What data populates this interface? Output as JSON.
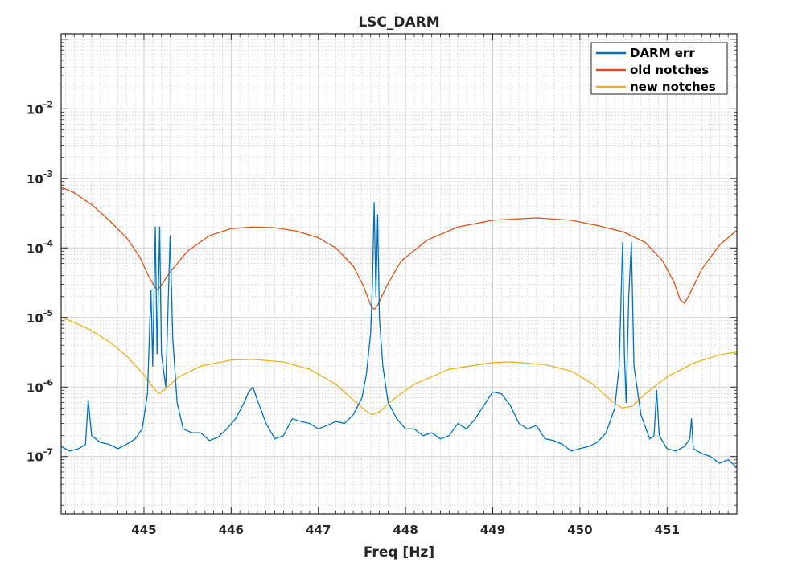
{
  "chart_data": {
    "type": "line",
    "title": "LSC_DARM",
    "xlabel": "Freq [Hz]",
    "ylabel": "",
    "xlim": [
      444.05,
      451.8
    ],
    "ylim": [
      1.5e-08,
      0.12
    ],
    "yscale": "log",
    "grid": true,
    "minor_grid": true,
    "legend_position": "top-right",
    "x_ticks": [
      "445",
      "446",
      "447",
      "448",
      "449",
      "450",
      "451"
    ],
    "y_ticks": [
      {
        "base": "10",
        "exp": "-7"
      },
      {
        "base": "10",
        "exp": "-6"
      },
      {
        "base": "10",
        "exp": "-5"
      },
      {
        "base": "10",
        "exp": "-4"
      },
      {
        "base": "10",
        "exp": "-3"
      },
      {
        "base": "10",
        "exp": "-2"
      }
    ],
    "series": [
      {
        "name": "DARM err",
        "color": "#0072BD",
        "points": [
          [
            444.05,
            1.4e-07
          ],
          [
            444.15,
            1.2e-07
          ],
          [
            444.25,
            1.3e-07
          ],
          [
            444.33,
            1.5e-07
          ],
          [
            444.36,
            6.5e-07
          ],
          [
            444.4,
            2e-07
          ],
          [
            444.5,
            1.6e-07
          ],
          [
            444.6,
            1.5e-07
          ],
          [
            444.7,
            1.3e-07
          ],
          [
            444.8,
            1.5e-07
          ],
          [
            444.9,
            1.8e-07
          ],
          [
            444.98,
            2.5e-07
          ],
          [
            445.04,
            8e-07
          ],
          [
            445.08,
            2.5e-05
          ],
          [
            445.1,
            2e-06
          ],
          [
            445.13,
            0.0002
          ],
          [
            445.15,
            3e-06
          ],
          [
            445.18,
            0.0002
          ],
          [
            445.2,
            3e-06
          ],
          [
            445.25,
            1e-06
          ],
          [
            445.3,
            0.00015
          ],
          [
            445.33,
            5e-06
          ],
          [
            445.38,
            6e-07
          ],
          [
            445.45,
            2.5e-07
          ],
          [
            445.55,
            2.2e-07
          ],
          [
            445.65,
            2.2e-07
          ],
          [
            445.75,
            1.7e-07
          ],
          [
            445.85,
            1.9e-07
          ],
          [
            445.95,
            2.5e-07
          ],
          [
            446.05,
            3.5e-07
          ],
          [
            446.15,
            6e-07
          ],
          [
            446.2,
            8.5e-07
          ],
          [
            446.25,
            1e-06
          ],
          [
            446.3,
            6.5e-07
          ],
          [
            446.4,
            3e-07
          ],
          [
            446.5,
            1.8e-07
          ],
          [
            446.6,
            2e-07
          ],
          [
            446.7,
            3.5e-07
          ],
          [
            446.8,
            3.2e-07
          ],
          [
            446.9,
            3e-07
          ],
          [
            447.0,
            2.5e-07
          ],
          [
            447.1,
            2.8e-07
          ],
          [
            447.2,
            3.2e-07
          ],
          [
            447.3,
            3e-07
          ],
          [
            447.4,
            4e-07
          ],
          [
            447.5,
            7e-07
          ],
          [
            447.55,
            1.5e-06
          ],
          [
            447.6,
            6e-06
          ],
          [
            447.62,
            3e-05
          ],
          [
            447.64,
            0.00045
          ],
          [
            447.66,
            2e-05
          ],
          [
            447.68,
            0.0003
          ],
          [
            447.7,
            1e-05
          ],
          [
            447.74,
            2e-06
          ],
          [
            447.8,
            6e-07
          ],
          [
            447.9,
            3.5e-07
          ],
          [
            448.0,
            2.5e-07
          ],
          [
            448.1,
            2.5e-07
          ],
          [
            448.2,
            2e-07
          ],
          [
            448.3,
            2.2e-07
          ],
          [
            448.4,
            1.8e-07
          ],
          [
            448.5,
            2e-07
          ],
          [
            448.6,
            3e-07
          ],
          [
            448.7,
            2.5e-07
          ],
          [
            448.8,
            3.5e-07
          ],
          [
            448.9,
            5.5e-07
          ],
          [
            449.0,
            8.5e-07
          ],
          [
            449.1,
            8e-07
          ],
          [
            449.2,
            5.5e-07
          ],
          [
            449.3,
            3e-07
          ],
          [
            449.4,
            2.5e-07
          ],
          [
            449.5,
            2.8e-07
          ],
          [
            449.6,
            1.8e-07
          ],
          [
            449.7,
            1.7e-07
          ],
          [
            449.8,
            1.5e-07
          ],
          [
            449.9,
            1.2e-07
          ],
          [
            450.0,
            1.3e-07
          ],
          [
            450.1,
            1.4e-07
          ],
          [
            450.2,
            1.6e-07
          ],
          [
            450.3,
            2.2e-07
          ],
          [
            450.4,
            5e-07
          ],
          [
            450.45,
            2e-06
          ],
          [
            450.49,
            0.00012
          ],
          [
            450.51,
            3e-06
          ],
          [
            450.53,
            6e-07
          ],
          [
            450.56,
            2e-05
          ],
          [
            450.59,
            0.00012
          ],
          [
            450.62,
            2e-06
          ],
          [
            450.7,
            4e-07
          ],
          [
            450.8,
            1.8e-07
          ],
          [
            450.85,
            2e-07
          ],
          [
            450.88,
            9e-07
          ],
          [
            450.91,
            2e-07
          ],
          [
            451.0,
            1.3e-07
          ],
          [
            451.1,
            1.2e-07
          ],
          [
            451.2,
            1.4e-07
          ],
          [
            451.26,
            1.8e-07
          ],
          [
            451.28,
            3.5e-07
          ],
          [
            451.3,
            1.3e-07
          ],
          [
            451.4,
            1.1e-07
          ],
          [
            451.5,
            1e-07
          ],
          [
            451.6,
            8e-08
          ],
          [
            451.7,
            9e-08
          ],
          [
            451.8,
            7e-08
          ]
        ]
      },
      {
        "name": "old notches",
        "color": "#D95319",
        "points": [
          [
            444.05,
            0.00075
          ],
          [
            444.2,
            0.00062
          ],
          [
            444.4,
            0.00042
          ],
          [
            444.6,
            0.00025
          ],
          [
            444.8,
            0.00014
          ],
          [
            444.95,
            7.5e-05
          ],
          [
            445.05,
            4e-05
          ],
          [
            445.12,
            2.8e-05
          ],
          [
            445.15,
            2.5e-05
          ],
          [
            445.19,
            2.8e-05
          ],
          [
            445.3,
            4.5e-05
          ],
          [
            445.5,
            9e-05
          ],
          [
            445.75,
            0.00015
          ],
          [
            446.0,
            0.00019
          ],
          [
            446.25,
            0.0002
          ],
          [
            446.5,
            0.000195
          ],
          [
            446.75,
            0.000175
          ],
          [
            447.0,
            0.00014
          ],
          [
            447.2,
            0.0001
          ],
          [
            447.4,
            5.5e-05
          ],
          [
            447.52,
            2.8e-05
          ],
          [
            447.6,
            1.5e-05
          ],
          [
            447.64,
            1.3e-05
          ],
          [
            447.68,
            1.5e-05
          ],
          [
            447.78,
            2.8e-05
          ],
          [
            447.95,
            6.5e-05
          ],
          [
            448.25,
            0.00013
          ],
          [
            448.6,
            0.0002
          ],
          [
            449.0,
            0.00025
          ],
          [
            449.5,
            0.00027
          ],
          [
            449.9,
            0.00025
          ],
          [
            450.2,
            0.00021
          ],
          [
            450.5,
            0.00017
          ],
          [
            450.75,
            0.00012
          ],
          [
            450.95,
            6.5e-05
          ],
          [
            451.08,
            3.2e-05
          ],
          [
            451.15,
            1.8e-05
          ],
          [
            451.2,
            1.6e-05
          ],
          [
            451.26,
            2.2e-05
          ],
          [
            451.4,
            5e-05
          ],
          [
            451.6,
            0.00011
          ],
          [
            451.8,
            0.00018
          ]
        ]
      },
      {
        "name": "new notches",
        "color": "#EDB120",
        "points": [
          [
            444.05,
            1e-05
          ],
          [
            444.2,
            8.5e-06
          ],
          [
            444.4,
            6.5e-06
          ],
          [
            444.6,
            4.5e-06
          ],
          [
            444.8,
            2.8e-06
          ],
          [
            445.0,
            1.5e-06
          ],
          [
            445.1,
            1e-06
          ],
          [
            445.17,
            8e-07
          ],
          [
            445.25,
            9.5e-07
          ],
          [
            445.4,
            1.4e-06
          ],
          [
            445.65,
            2e-06
          ],
          [
            446.0,
            2.45e-06
          ],
          [
            446.25,
            2.5e-06
          ],
          [
            446.6,
            2.3e-06
          ],
          [
            446.9,
            1.8e-06
          ],
          [
            447.2,
            1.1e-06
          ],
          [
            447.4,
            6.5e-07
          ],
          [
            447.55,
            4.5e-07
          ],
          [
            447.62,
            4e-07
          ],
          [
            447.7,
            4.4e-07
          ],
          [
            447.85,
            6.5e-07
          ],
          [
            448.1,
            1.1e-06
          ],
          [
            448.5,
            1.8e-06
          ],
          [
            449.0,
            2.25e-06
          ],
          [
            449.2,
            2.3e-06
          ],
          [
            449.6,
            2.1e-06
          ],
          [
            449.9,
            1.7e-06
          ],
          [
            450.15,
            1.1e-06
          ],
          [
            450.35,
            6.5e-07
          ],
          [
            450.48,
            5e-07
          ],
          [
            450.6,
            5.3e-07
          ],
          [
            450.75,
            8e-07
          ],
          [
            451.0,
            1.4e-06
          ],
          [
            451.3,
            2.2e-06
          ],
          [
            451.6,
            2.9e-06
          ],
          [
            451.8,
            3.2e-06
          ]
        ]
      }
    ]
  }
}
